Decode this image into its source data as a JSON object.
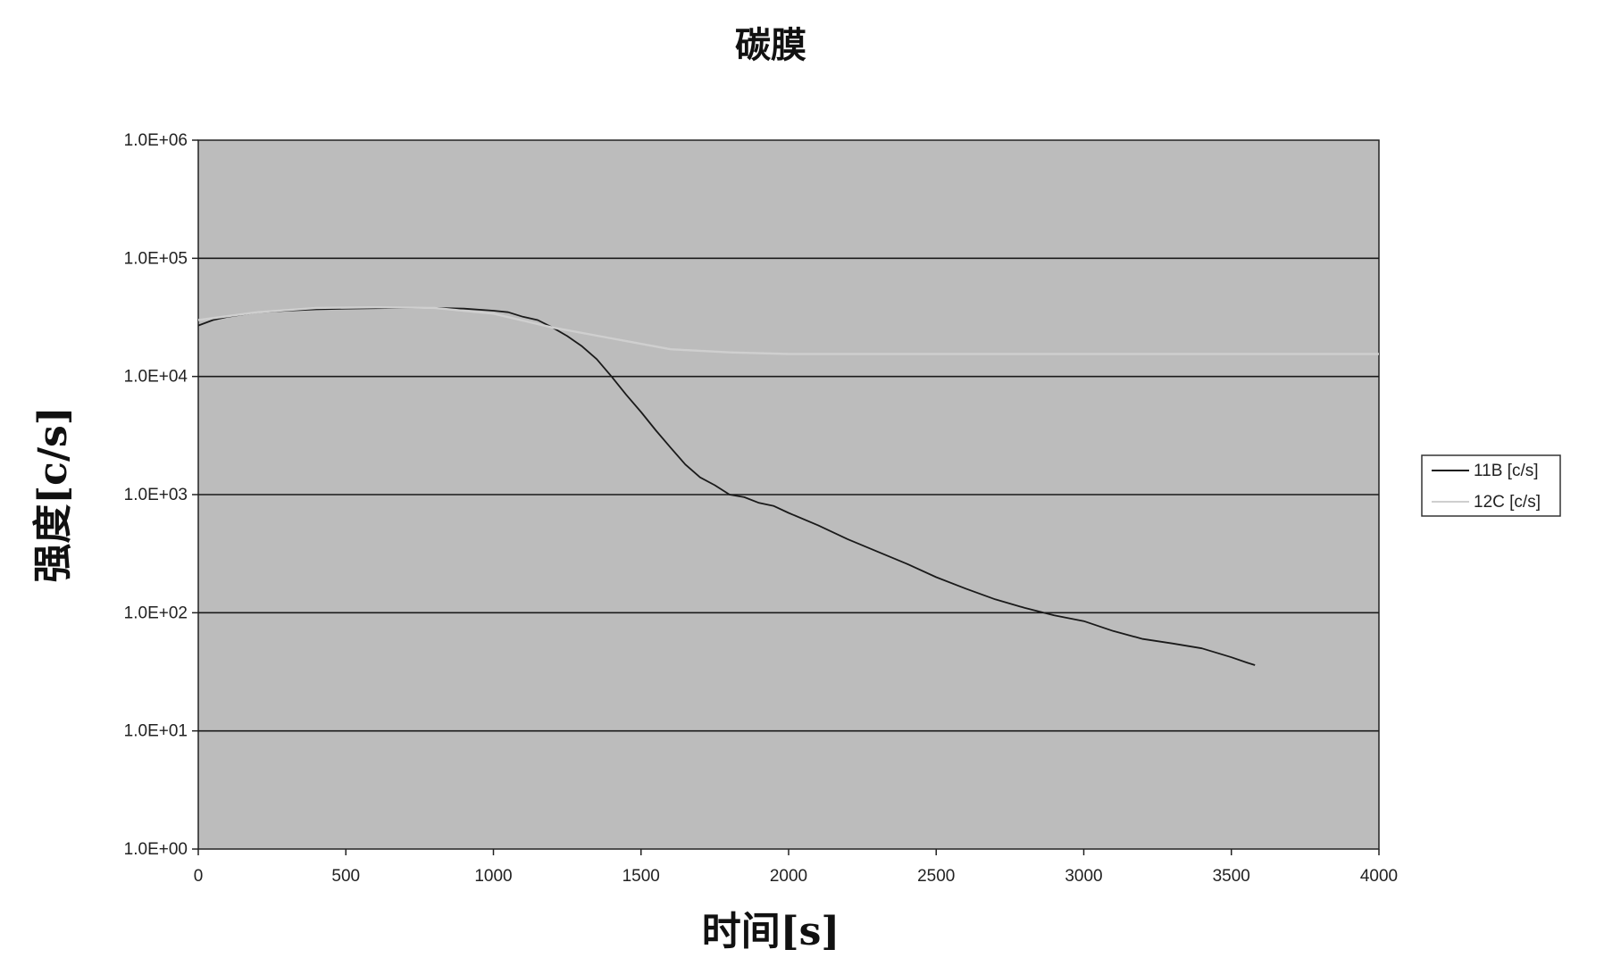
{
  "chart_data": {
    "type": "line",
    "title": "碳膜",
    "xlabel": "时间[s]",
    "ylabel": "强度[c/s]",
    "xlim": [
      0,
      4000
    ],
    "ylim": [
      1,
      1000000
    ],
    "yscale": "log",
    "grid": true,
    "legend_position": "right",
    "background": "#bcbcbc",
    "x_ticks": [
      "0",
      "500",
      "1000",
      "1500",
      "2000",
      "2500",
      "3000",
      "3500",
      "4000"
    ],
    "y_ticks": [
      "1.0E+00",
      "1.0E+01",
      "1.0E+02",
      "1.0E+03",
      "1.0E+04",
      "1.0E+05",
      "1.0E+06"
    ],
    "series": [
      {
        "name": "11B [c/s]",
        "color": "#1a1a1a",
        "x": [
          0,
          50,
          100,
          200,
          300,
          400,
          500,
          600,
          700,
          800,
          900,
          1000,
          1050,
          1100,
          1150,
          1200,
          1250,
          1300,
          1350,
          1400,
          1450,
          1500,
          1550,
          1600,
          1650,
          1700,
          1750,
          1800,
          1850,
          1900,
          1950,
          2000,
          2100,
          2200,
          2300,
          2400,
          2500,
          2600,
          2700,
          2800,
          2900,
          3000,
          3100,
          3200,
          3300,
          3400,
          3500,
          3550,
          3580
        ],
        "y": [
          27000,
          30000,
          32000,
          35000,
          36000,
          37000,
          37500,
          37800,
          38000,
          38000,
          37500,
          36000,
          35000,
          32000,
          30000,
          26000,
          22000,
          18000,
          14000,
          10000,
          7000,
          5000,
          3500,
          2500,
          1800,
          1400,
          1200,
          1000,
          950,
          850,
          800,
          700,
          550,
          420,
          330,
          260,
          200,
          160,
          130,
          110,
          95,
          85,
          70,
          60,
          55,
          50,
          42,
          38,
          36
        ]
      },
      {
        "name": "12C [c/s]",
        "color": "#cfcfcf",
        "x": [
          0,
          200,
          400,
          600,
          800,
          1000,
          1200,
          1400,
          1600,
          1800,
          2000,
          2200,
          2400,
          2600,
          2800,
          3000,
          3200,
          3400,
          3600,
          3800,
          4000
        ],
        "y": [
          30000,
          35000,
          38000,
          38500,
          38000,
          34000,
          26000,
          21000,
          17000,
          16000,
          15500,
          15500,
          15500,
          15500,
          15500,
          15500,
          15500,
          15500,
          15500,
          15500,
          15500
        ]
      }
    ]
  }
}
